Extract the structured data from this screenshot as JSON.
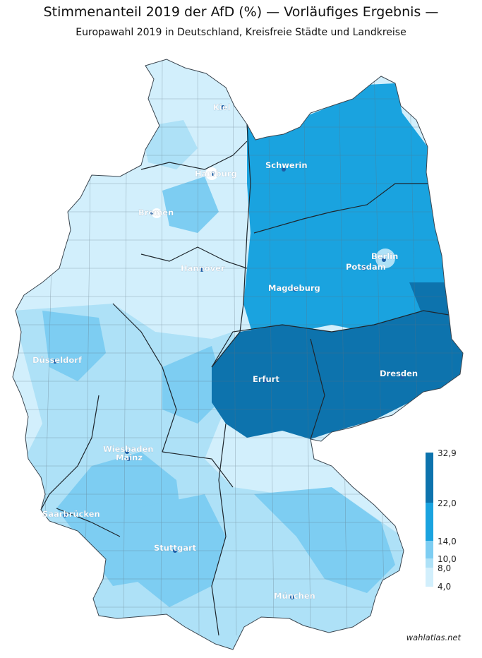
{
  "title": "Stimmenanteil 2019 der AfD (%) — Vorläufiges Ergebnis —",
  "subtitle": "Europawahl 2019 in Deutschland, Kreisfreie Städte und Landkreise",
  "credit": "wahlatlas.net",
  "colors": {
    "class_1": "#d2effc",
    "class_2": "#aee1f7",
    "class_3": "#7dcdf2",
    "class_4": "#1aa3df",
    "class_5": "#0d73ad",
    "border": "#4a5a66",
    "state_border": "#1e262d"
  },
  "cities": [
    {
      "name": "Kiel"
    },
    {
      "name": "Hamburg"
    },
    {
      "name": "Schwerin"
    },
    {
      "name": "Bremen"
    },
    {
      "name": "Berlin"
    },
    {
      "name": "Potsdam"
    },
    {
      "name": "Hannover"
    },
    {
      "name": "Magdeburg"
    },
    {
      "name": "Düsseldorf"
    },
    {
      "name": "Erfurt"
    },
    {
      "name": "Dresden"
    },
    {
      "name": "Wiesbaden"
    },
    {
      "name": "Mainz"
    },
    {
      "name": "Saarbrücken"
    },
    {
      "name": "Stuttgart"
    },
    {
      "name": "München"
    }
  ],
  "legend": {
    "ticks": [
      "32,9",
      "22,0",
      "14,0",
      "10,0",
      "8,0",
      "4,0"
    ]
  }
}
